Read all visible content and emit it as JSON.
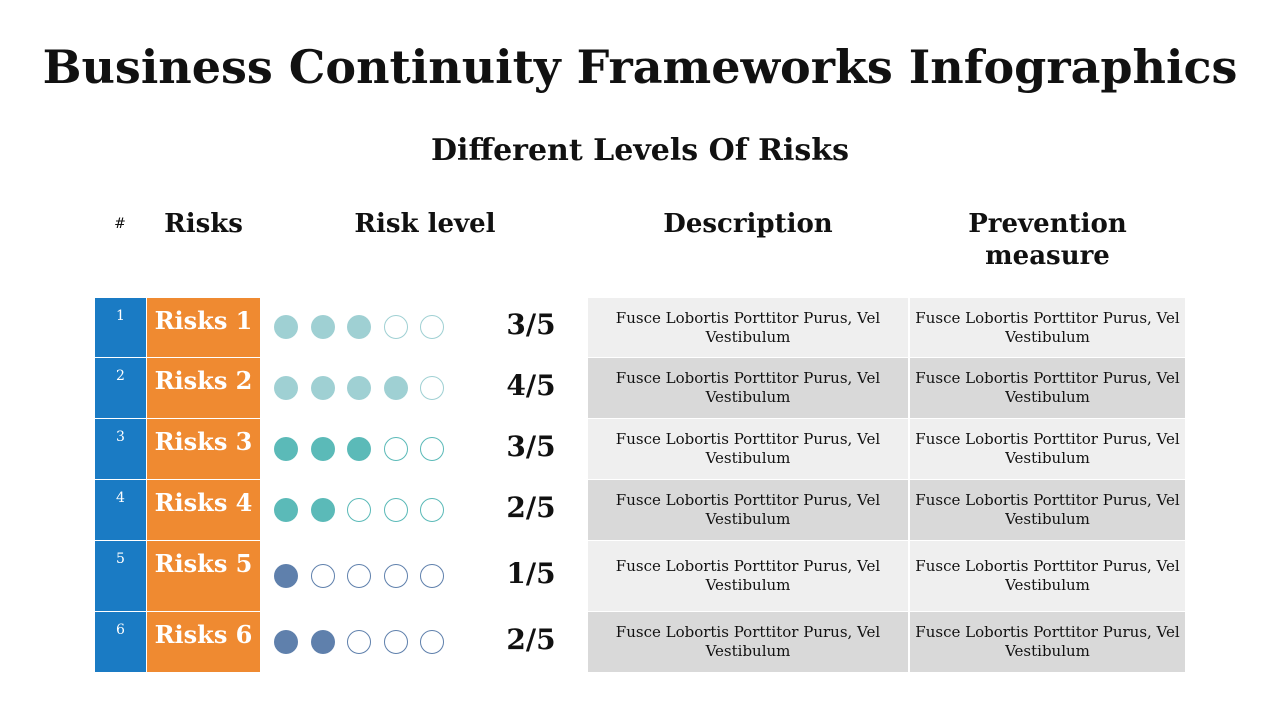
{
  "title": "Business Continuity Frameworks Infographics",
  "subtitle": "Different Levels Of Risks",
  "headers": {
    "num": "#",
    "risks": "Risks",
    "level": "Risk level",
    "description": "Description",
    "prevention": "Prevention measure"
  },
  "colors": {
    "blue": "#1a7bc4",
    "orange": "#ef8a31",
    "dot_light_teal": "#9fd0d3",
    "dot_teal": "#5bbab8",
    "dot_slate": "#5f80ac",
    "row_light": "#efefef",
    "row_dark": "#d9d9d9"
  },
  "rows": [
    {
      "num": "1",
      "risk": "Risks 1",
      "level": 3,
      "score": "3/5",
      "desc": "Fusce Lobortis Porttitor Purus, Vel Vestibulum",
      "prev": "Fusce Lobortis Porttitor Purus, Vel Vestibulum",
      "dot_color": "#9fd0d3",
      "shade": "light"
    },
    {
      "num": "2",
      "risk": "Risks 2",
      "level": 4,
      "score": "4/5",
      "desc": "Fusce Lobortis Porttitor Purus, Vel Vestibulum",
      "prev": "Fusce Lobortis Porttitor Purus, Vel Vestibulum",
      "dot_color": "#9fd0d3",
      "shade": "dark"
    },
    {
      "num": "3",
      "risk": "Risks 3",
      "level": 3,
      "score": "3/5",
      "desc": "Fusce Lobortis Porttitor Purus, Vel Vestibulum",
      "prev": "Fusce Lobortis Porttitor Purus, Vel Vestibulum",
      "dot_color": "#5bbab8",
      "shade": "light"
    },
    {
      "num": "4",
      "risk": "Risks 4",
      "level": 2,
      "score": "2/5",
      "desc": "Fusce Lobortis Porttitor Purus, Vel Vestibulum",
      "prev": "Fusce Lobortis Porttitor Purus, Vel Vestibulum",
      "dot_color": "#5bbab8",
      "shade": "dark"
    },
    {
      "num": "5",
      "risk": "Risks 5",
      "level": 1,
      "score": "1/5",
      "desc": "Fusce Lobortis Porttitor Purus, Vel Vestibulum",
      "prev": "Fusce Lobortis Porttitor Purus, Vel Vestibulum",
      "dot_color": "#5f80ac",
      "shade": "light"
    },
    {
      "num": "6",
      "risk": "Risks 6",
      "level": 2,
      "score": "2/5",
      "desc": "Fusce Lobortis Porttitor Purus, Vel Vestibulum",
      "prev": "Fusce Lobortis Porttitor Purus, Vel Vestibulum",
      "dot_color": "#5f80ac",
      "shade": "dark"
    }
  ]
}
